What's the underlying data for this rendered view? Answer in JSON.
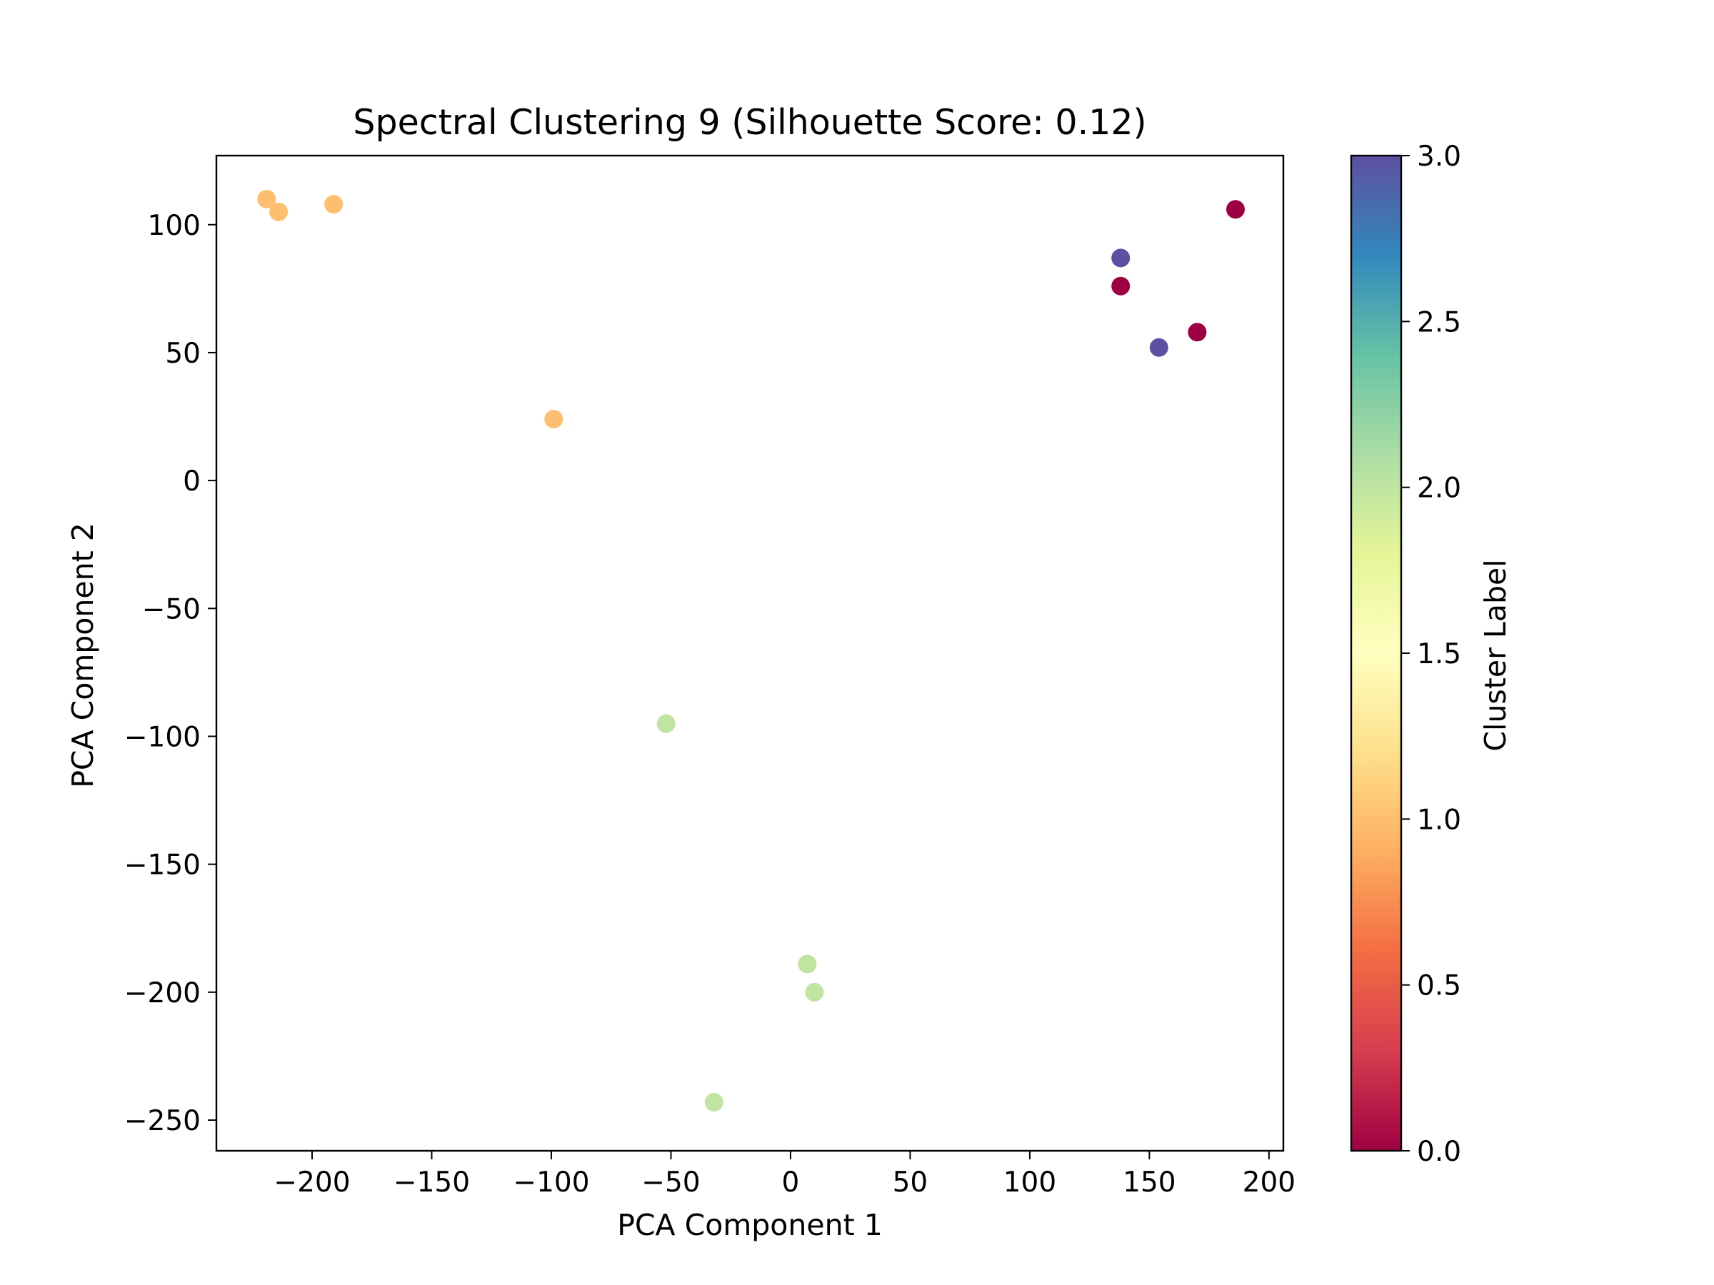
{
  "chart_data": {
    "type": "scatter",
    "title": "Spectral Clustering 9 (Silhouette Score: 0.12)",
    "xlabel": "PCA Component 1",
    "ylabel": "PCA Component 2",
    "xlim": [
      -240,
      206
    ],
    "ylim": [
      -262,
      127
    ],
    "xticks": [
      -200,
      -150,
      -100,
      -50,
      0,
      50,
      100,
      150,
      200
    ],
    "yticks": [
      -250,
      -200,
      -150,
      -100,
      -50,
      0,
      50,
      100
    ],
    "xtick_labels": [
      "−200",
      "−150",
      "−100",
      "−50",
      "0",
      "50",
      "100",
      "150",
      "200"
    ],
    "ytick_labels": [
      "−250",
      "−200",
      "−150",
      "−100",
      "−50",
      "0",
      "50",
      "100"
    ],
    "grid": false,
    "colormap": "Spectral",
    "colorbar": {
      "label": "Cluster Label",
      "range": [
        0.0,
        3.0
      ],
      "ticks": [
        0.0,
        0.5,
        1.0,
        1.5,
        2.0,
        2.5,
        3.0
      ],
      "tick_labels": [
        "0.0",
        "0.5",
        "1.0",
        "1.5",
        "2.0",
        "2.5",
        "3.0"
      ],
      "stops": [
        "#9e0142",
        "#d53e4f",
        "#f46d43",
        "#fdae61",
        "#fee08b",
        "#ffffbf",
        "#e6f598",
        "#abdda4",
        "#66c2a5",
        "#3288bd",
        "#5e4fa2"
      ]
    },
    "cluster_colors": {
      "0": "#9e0142",
      "1": "#fdbf6f",
      "2": "#bfe5a0",
      "3": "#5e4fa2"
    },
    "points": [
      {
        "x": -219,
        "y": 110,
        "cluster": 1
      },
      {
        "x": -214,
        "y": 105,
        "cluster": 1
      },
      {
        "x": -191,
        "y": 108,
        "cluster": 1
      },
      {
        "x": -99,
        "y": 24,
        "cluster": 1
      },
      {
        "x": -52,
        "y": -95,
        "cluster": 2
      },
      {
        "x": -32,
        "y": -243,
        "cluster": 2
      },
      {
        "x": 7,
        "y": -189,
        "cluster": 2
      },
      {
        "x": 10,
        "y": -200,
        "cluster": 2
      },
      {
        "x": 138,
        "y": 87,
        "cluster": 3
      },
      {
        "x": 154,
        "y": 52,
        "cluster": 3
      },
      {
        "x": 138,
        "y": 76,
        "cluster": 0
      },
      {
        "x": 170,
        "y": 58,
        "cluster": 0
      },
      {
        "x": 186,
        "y": 106,
        "cluster": 0
      }
    ]
  }
}
